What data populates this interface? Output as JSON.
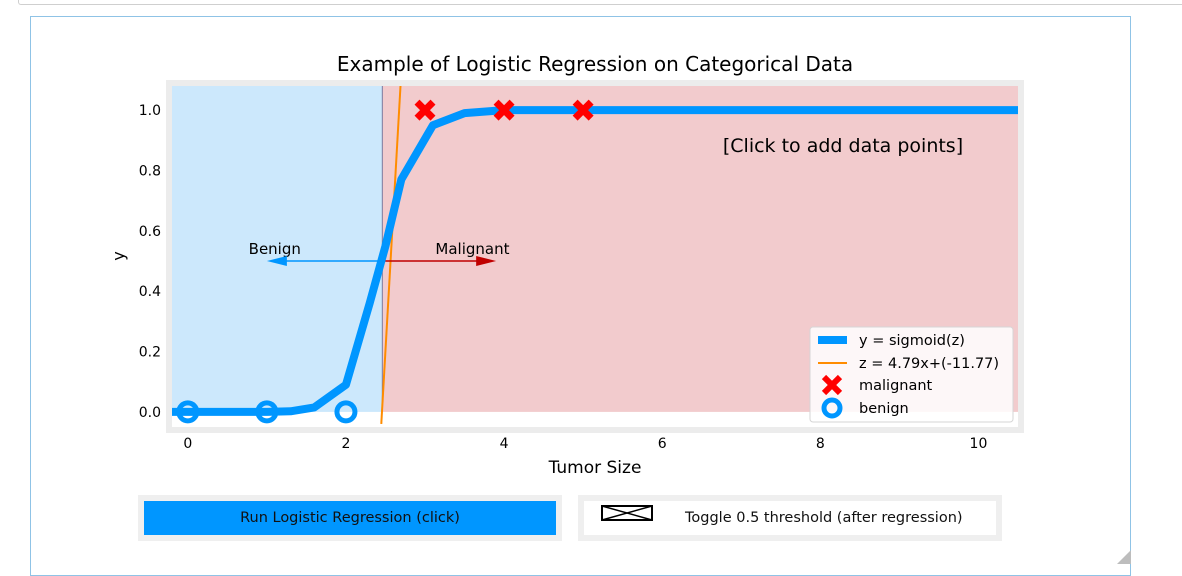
{
  "chart_data": {
    "type": "line",
    "title": "Example of Logistic Regression on Categorical Data",
    "xlabel": "Tumor Size",
    "ylabel": "y",
    "xlim": [
      -0.2,
      10.5
    ],
    "ylim": [
      -0.05,
      1.08
    ],
    "xticks": [
      0,
      2,
      4,
      6,
      8,
      10
    ],
    "yticks": [
      0.0,
      0.2,
      0.4,
      0.6,
      0.8,
      1.0
    ],
    "decision_boundary": 2.46,
    "region_colors": {
      "benign": "#cce8fc",
      "malignant": "#f2cbcd"
    },
    "series": [
      {
        "name": "y = sigmoid(z)",
        "kind": "line",
        "color": "#0096ff",
        "x": [
          -0.2,
          0.4,
          1.0,
          1.3,
          1.6,
          2.0,
          2.3,
          2.5,
          2.7,
          3.1,
          3.5,
          4.0,
          4.5,
          10.5
        ],
        "y": [
          0.0,
          0.0,
          0.0,
          0.002,
          0.015,
          0.09,
          0.36,
          0.55,
          0.77,
          0.95,
          0.99,
          1.0,
          1.0,
          1.0
        ]
      },
      {
        "name": "z = 4.79x+(-11.77)",
        "kind": "line",
        "color": "#ff8c00",
        "x": [
          2.447,
          2.69
        ],
        "y": [
          -0.04,
          1.08
        ]
      },
      {
        "name": "malignant",
        "kind": "scatter",
        "marker": "x",
        "color": "#ff0000",
        "x": [
          3,
          4,
          5
        ],
        "y": [
          1,
          1,
          1
        ]
      },
      {
        "name": "benign",
        "kind": "scatter",
        "marker": "o",
        "color": "#0096ff",
        "x": [
          0,
          1,
          2
        ],
        "y": [
          0,
          0,
          0
        ]
      }
    ],
    "annotations": [
      {
        "text": "Benign",
        "x": 1.1,
        "y": 0.55,
        "arrow_from": 2.5,
        "arrow_to": 1.0,
        "arrow_y": 0.5,
        "color": "#0096ff"
      },
      {
        "text": "Malignant",
        "x": 3.6,
        "y": 0.55,
        "arrow_from": 2.5,
        "arrow_to": 3.9,
        "arrow_y": 0.5,
        "color": "#c00000"
      },
      {
        "text": "[Click to add data points]"
      }
    ],
    "legend": {
      "position": "lower-right"
    },
    "grid": false
  },
  "controls": {
    "run_label": "Run Logistic Regression (click)",
    "toggle_label": "Toggle 0.5 threshold (after regression)",
    "toggle_checked": false
  },
  "colors": {
    "accent": "#0096ff",
    "malignant": "#ff0000",
    "boundary_line": "#ff8c00"
  }
}
